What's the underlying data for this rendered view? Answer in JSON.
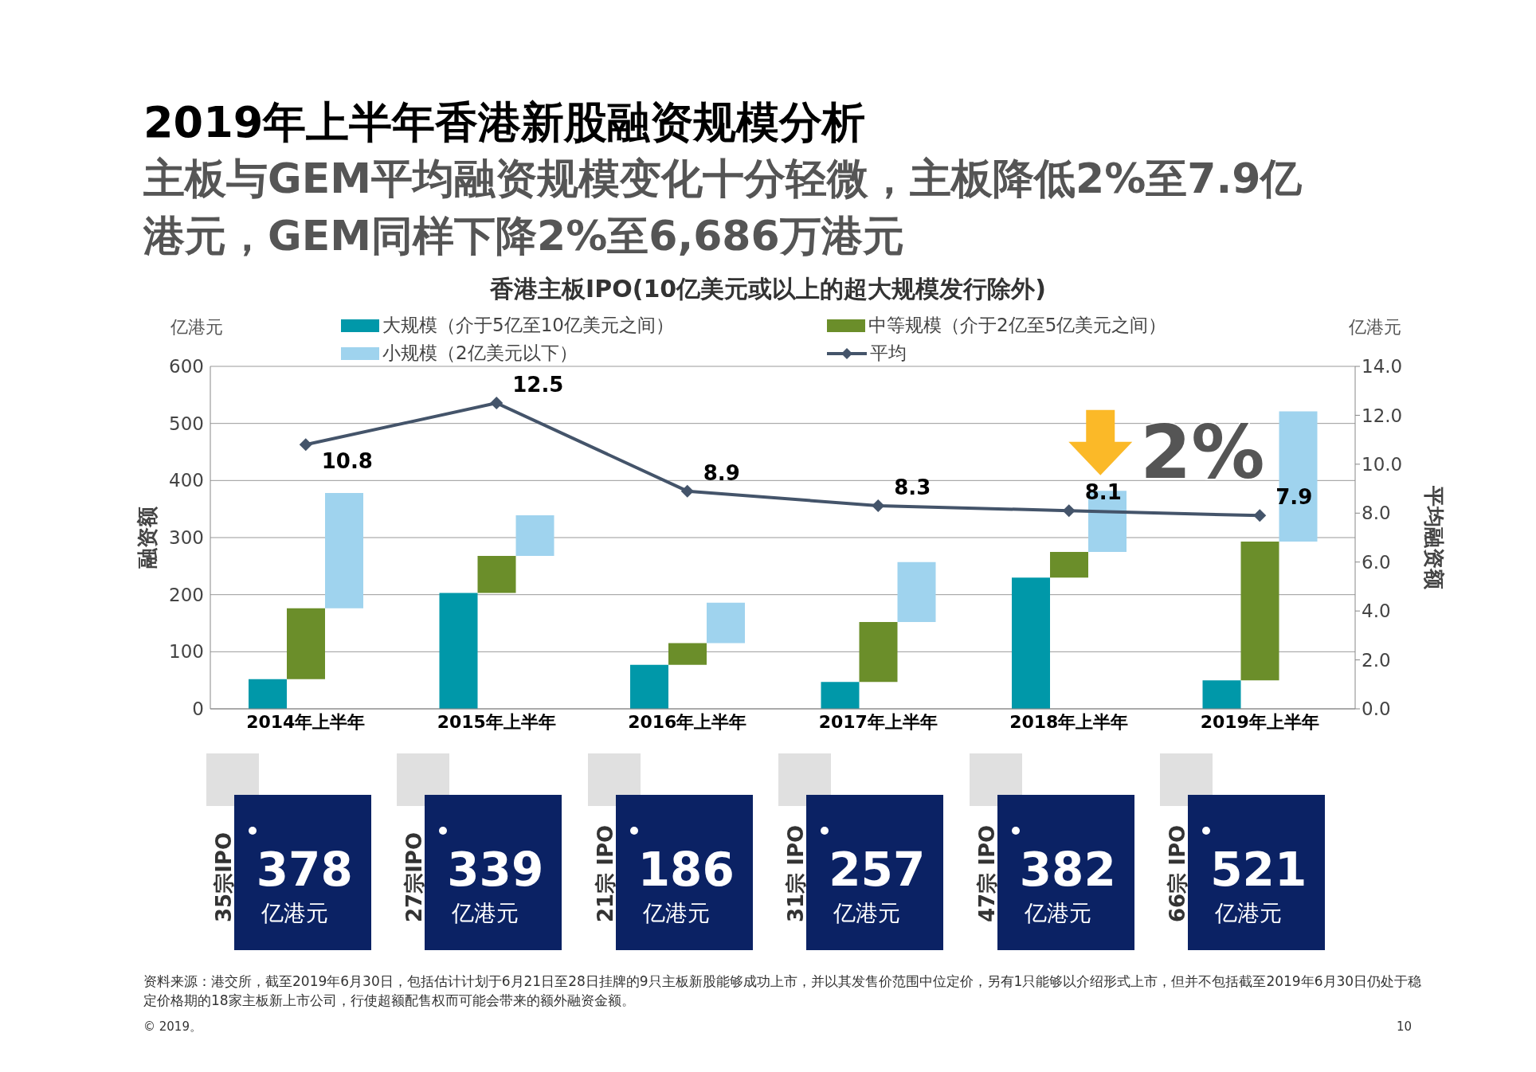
{
  "chart_data": {
    "type": "bar",
    "title": "2019年上半年香港新股融资规模分析",
    "subtitle": "主板与GEM平均融资规模变化十分轻微，主板降低2%至7.9亿港元，GEM同样下降2%至6,686万港元",
    "categories": [
      "2014年上半年",
      "2015年上半年",
      "2016年上半年",
      "2017年上半年",
      "2018年上半年",
      "2019年上半年"
    ],
    "stacked": true,
    "series": [
      {
        "name": "大规模（介于5亿至10亿美元之间）",
        "color": "#0098a9",
        "values": [
          52,
          203,
          77,
          47,
          230,
          50
        ]
      },
      {
        "name": "中等规模（介于2亿至5亿美元之间）",
        "color": "#6b8e2a",
        "values": [
          124,
          65,
          38,
          105,
          45,
          243
        ]
      },
      {
        "name": "小规模（2亿美元以下）",
        "color": "#9fd3ee",
        "values": [
          202,
          71,
          71,
          105,
          107,
          228
        ]
      },
      {
        "name": "平均",
        "type": "line",
        "axis": "y2",
        "color": "#44546a",
        "values": [
          10.8,
          12.5,
          8.9,
          8.3,
          8.1,
          7.9
        ],
        "value_labels": [
          "10.8",
          "12.5",
          "8.9",
          "8.3",
          "8.1",
          "7.9"
        ]
      }
    ],
    "totals": [
      "378",
      "339",
      "186",
      "257",
      "382",
      "521"
    ],
    "ylabel": "融资额",
    "y2label": "平均融资额",
    "ylim": [
      0,
      600
    ],
    "yticks": [
      0,
      100,
      200,
      300,
      400,
      500,
      600
    ],
    "y2lim": [
      0,
      14
    ],
    "y2ticks": [
      {
        "value": 0,
        "label": "0.0"
      },
      {
        "value": 2,
        "label": "2.0"
      },
      {
        "value": 4,
        "label": "4.0"
      },
      {
        "value": 6,
        "label": "6.0"
      },
      {
        "value": 8,
        "label": "8.0"
      },
      {
        "value": 10,
        "label": "10.0"
      },
      {
        "value": 12,
        "label": "12.0"
      },
      {
        "value": 14,
        "label": "14.0"
      }
    ],
    "grid": "y",
    "legend": "top",
    "marker": "diamond",
    "line_style": "solid",
    "annotations": [
      "香港主板IPO(10亿美元或以上的超大规模发行除外)",
      "亿港元",
      "亿港元",
      "资料来源：港交所，截至2019年6月30日，包括估计计划于6月21日至28日挂牌的9只主板新股能够成功上市，并以其发售价范围中位定价，另有1只能够以介绍形式上市，但并不包括截至2019年6月30日仍处于稳定价格期的18家主板新上市公司，行使超额配售权而可能会带来的额外融资金额。",
      "© 2019。",
      "10",
      "35宗IPO",
      "亿港元",
      "27宗IPO",
      "亿港元",
      "21宗 IPO",
      "亿港元",
      "31宗 IPO",
      "亿港元",
      "47宗 IPO",
      "亿港元",
      "66宗 IPO",
      "亿港元",
      "2%"
    ]
  }
}
